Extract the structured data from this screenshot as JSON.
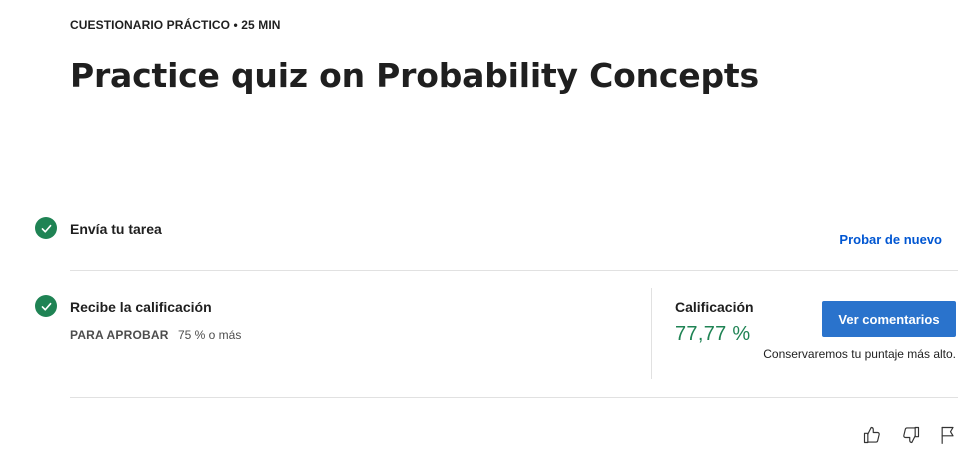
{
  "header": {
    "eyebrow": "CUESTIONARIO PRÁCTICO • 25 MIN",
    "title": "Practice quiz on Probability Concepts"
  },
  "steps": {
    "submit": {
      "label": "Envía tu tarea",
      "action_label": "Probar de nuevo"
    },
    "grade": {
      "label": "Recibe la calificación",
      "pass_key": "PARA APROBAR",
      "pass_value": "75 % o más"
    }
  },
  "result": {
    "grade_label": "Calificación",
    "grade_value": "77,77 %",
    "button_label": "Ver comentarios",
    "note": "Conservaremos tu puntaje más alto."
  },
  "colors": {
    "success": "#1f8354",
    "link": "#0056d2",
    "button": "#2a73cc"
  },
  "icons": [
    "check-icon",
    "thumbs-up-icon",
    "thumbs-down-icon",
    "flag-icon"
  ]
}
